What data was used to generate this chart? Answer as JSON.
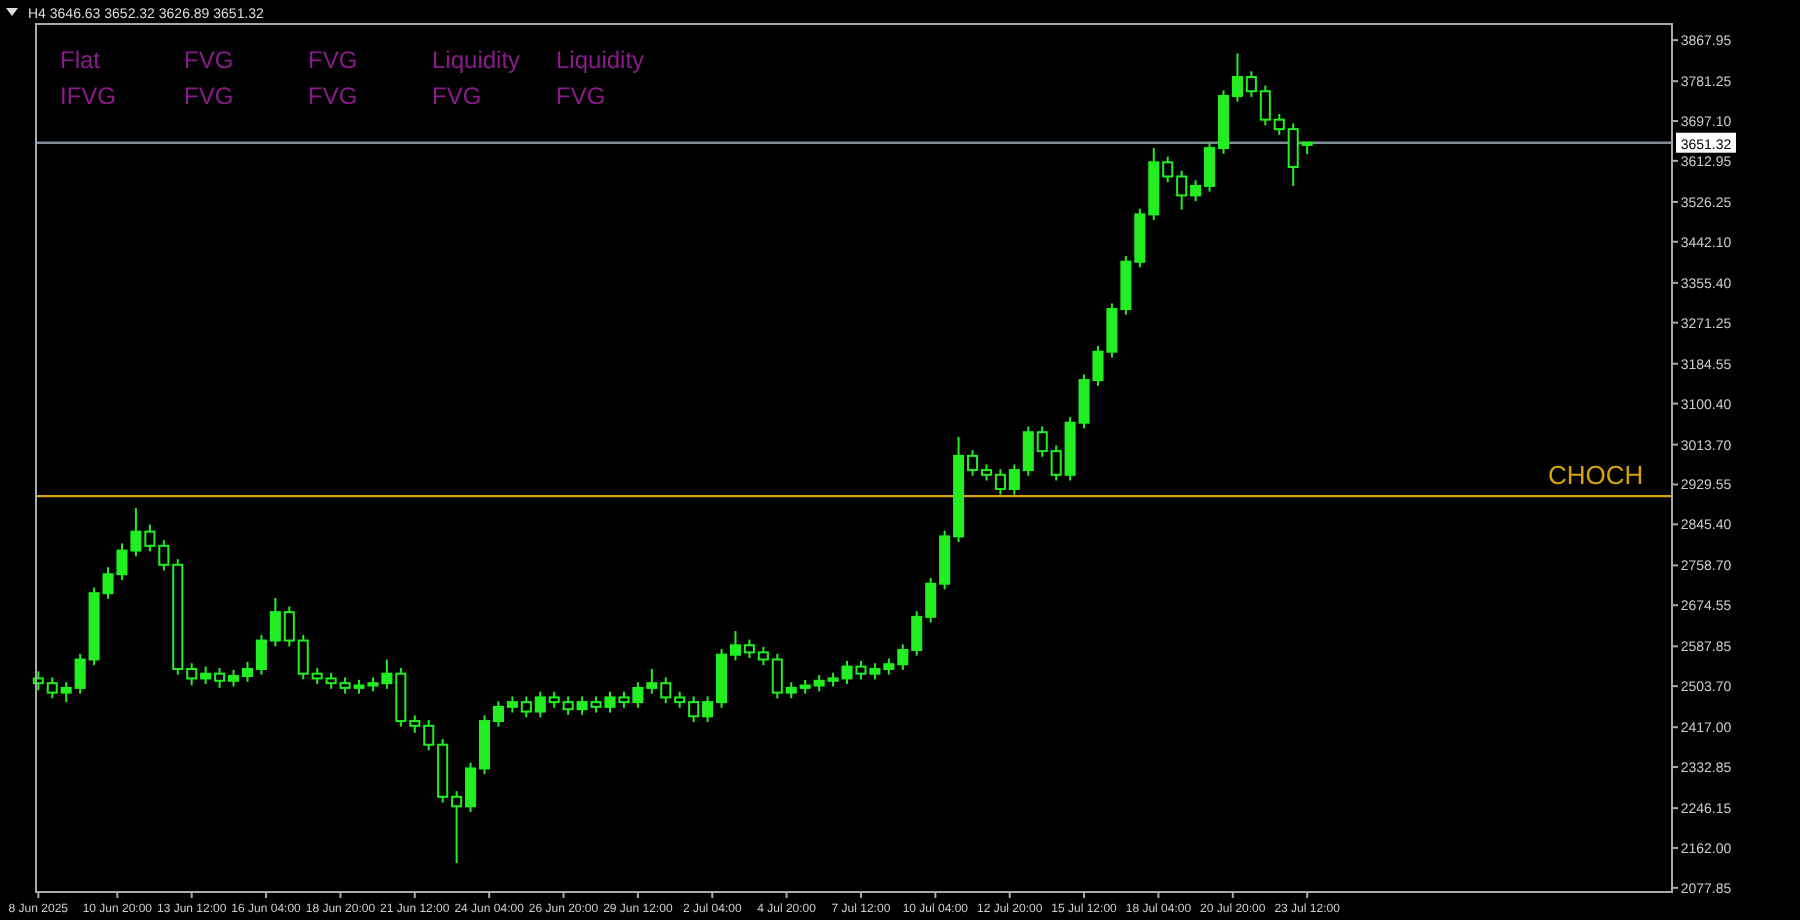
{
  "chart_data": {
    "type": "candlestick",
    "title": "H4  3646.63 3652.32 3626.89 3651.32",
    "color": "#22ee22",
    "x": [
      "2025-06-08T00:00",
      "2025-06-08T12:00",
      "2025-06-09T00:00",
      "2025-06-09T12:00",
      "2025-06-10T00:00",
      "2025-06-10T12:00",
      "2025-06-11T00:00",
      "2025-06-11T12:00",
      "2025-06-12T00:00",
      "2025-06-12T12:00",
      "2025-06-13T00:00",
      "2025-06-13T12:00",
      "2025-06-14T00:00",
      "2025-06-14T12:00",
      "2025-06-15T00:00",
      "2025-06-15T12:00",
      "2025-06-16T00:00",
      "2025-06-16T12:00",
      "2025-06-17T00:00",
      "2025-06-17T12:00",
      "2025-06-18T00:00",
      "2025-06-18T12:00",
      "2025-06-19T00:00",
      "2025-06-19T12:00",
      "2025-06-20T00:00",
      "2025-06-20T12:00",
      "2025-06-21T00:00",
      "2025-06-21T12:00",
      "2025-06-22T00:00",
      "2025-06-22T12:00",
      "2025-06-23T00:00",
      "2025-06-23T12:00",
      "2025-06-24T00:00",
      "2025-06-24T12:00",
      "2025-06-25T00:00",
      "2025-06-25T12:00",
      "2025-06-26T00:00",
      "2025-06-26T12:00",
      "2025-06-27T00:00",
      "2025-06-27T12:00",
      "2025-06-28T00:00",
      "2025-06-28T12:00",
      "2025-06-29T00:00",
      "2025-06-29T12:00",
      "2025-06-30T00:00",
      "2025-06-30T12:00",
      "2025-07-01T00:00",
      "2025-07-01T12:00",
      "2025-07-02T00:00",
      "2025-07-02T12:00",
      "2025-07-03T00:00",
      "2025-07-03T12:00",
      "2025-07-04T00:00",
      "2025-07-04T12:00",
      "2025-07-05T00:00",
      "2025-07-05T12:00",
      "2025-07-06T00:00",
      "2025-07-06T12:00",
      "2025-07-07T00:00",
      "2025-07-07T12:00",
      "2025-07-08T00:00",
      "2025-07-08T12:00",
      "2025-07-09T00:00",
      "2025-07-09T12:00",
      "2025-07-10T00:00",
      "2025-07-10T12:00",
      "2025-07-11T00:00",
      "2025-07-11T12:00",
      "2025-07-12T00:00",
      "2025-07-12T12:00",
      "2025-07-13T00:00",
      "2025-07-13T12:00",
      "2025-07-14T00:00",
      "2025-07-14T12:00",
      "2025-07-15T00:00",
      "2025-07-15T12:00",
      "2025-07-16T00:00",
      "2025-07-16T12:00",
      "2025-07-17T00:00",
      "2025-07-17T12:00",
      "2025-07-18T00:00",
      "2025-07-18T12:00",
      "2025-07-19T00:00",
      "2025-07-19T12:00",
      "2025-07-20T00:00",
      "2025-07-20T12:00",
      "2025-07-21T00:00",
      "2025-07-21T12:00",
      "2025-07-22T00:00",
      "2025-07-22T12:00",
      "2025-07-23T00:00",
      "2025-07-23T12:00"
    ],
    "ohlc": [
      [
        2520,
        2535,
        2495,
        2510
      ],
      [
        2510,
        2522,
        2478,
        2490
      ],
      [
        2490,
        2512,
        2470,
        2500
      ],
      [
        2500,
        2572,
        2488,
        2560
      ],
      [
        2560,
        2712,
        2548,
        2700
      ],
      [
        2700,
        2755,
        2688,
        2740
      ],
      [
        2740,
        2805,
        2728,
        2790
      ],
      [
        2790,
        2880,
        2778,
        2830
      ],
      [
        2830,
        2845,
        2788,
        2800
      ],
      [
        2800,
        2812,
        2748,
        2760
      ],
      [
        2760,
        2772,
        2528,
        2540
      ],
      [
        2540,
        2552,
        2505,
        2520
      ],
      [
        2520,
        2545,
        2508,
        2530
      ],
      [
        2530,
        2542,
        2500,
        2515
      ],
      [
        2515,
        2538,
        2503,
        2525
      ],
      [
        2525,
        2555,
        2513,
        2540
      ],
      [
        2540,
        2612,
        2528,
        2600
      ],
      [
        2600,
        2690,
        2588,
        2660
      ],
      [
        2660,
        2672,
        2588,
        2600
      ],
      [
        2600,
        2612,
        2518,
        2530
      ],
      [
        2530,
        2542,
        2508,
        2520
      ],
      [
        2520,
        2532,
        2498,
        2510
      ],
      [
        2510,
        2522,
        2488,
        2500
      ],
      [
        2500,
        2517,
        2488,
        2505
      ],
      [
        2505,
        2522,
        2493,
        2510
      ],
      [
        2510,
        2560,
        2498,
        2530
      ],
      [
        2530,
        2542,
        2418,
        2430
      ],
      [
        2430,
        2442,
        2405,
        2420
      ],
      [
        2420,
        2432,
        2368,
        2380
      ],
      [
        2380,
        2392,
        2258,
        2270
      ],
      [
        2270,
        2282,
        2130,
        2250
      ],
      [
        2250,
        2342,
        2238,
        2330
      ],
      [
        2330,
        2442,
        2318,
        2430
      ],
      [
        2430,
        2472,
        2418,
        2460
      ],
      [
        2460,
        2482,
        2448,
        2470
      ],
      [
        2470,
        2482,
        2438,
        2450
      ],
      [
        2450,
        2492,
        2438,
        2480
      ],
      [
        2480,
        2492,
        2458,
        2470
      ],
      [
        2470,
        2482,
        2443,
        2455
      ],
      [
        2455,
        2482,
        2443,
        2470
      ],
      [
        2470,
        2482,
        2448,
        2460
      ],
      [
        2460,
        2492,
        2448,
        2480
      ],
      [
        2480,
        2492,
        2458,
        2470
      ],
      [
        2470,
        2512,
        2458,
        2500
      ],
      [
        2500,
        2540,
        2488,
        2510
      ],
      [
        2510,
        2522,
        2468,
        2480
      ],
      [
        2480,
        2492,
        2458,
        2470
      ],
      [
        2470,
        2482,
        2428,
        2440
      ],
      [
        2440,
        2482,
        2428,
        2470
      ],
      [
        2470,
        2582,
        2458,
        2570
      ],
      [
        2570,
        2620,
        2558,
        2590
      ],
      [
        2590,
        2602,
        2563,
        2575
      ],
      [
        2575,
        2587,
        2548,
        2560
      ],
      [
        2560,
        2572,
        2478,
        2490
      ],
      [
        2490,
        2512,
        2478,
        2500
      ],
      [
        2500,
        2517,
        2488,
        2505
      ],
      [
        2505,
        2527,
        2493,
        2515
      ],
      [
        2515,
        2532,
        2503,
        2520
      ],
      [
        2520,
        2557,
        2508,
        2545
      ],
      [
        2545,
        2557,
        2518,
        2530
      ],
      [
        2530,
        2552,
        2518,
        2540
      ],
      [
        2540,
        2562,
        2528,
        2550
      ],
      [
        2550,
        2592,
        2538,
        2580
      ],
      [
        2580,
        2662,
        2568,
        2650
      ],
      [
        2650,
        2732,
        2638,
        2720
      ],
      [
        2720,
        2832,
        2708,
        2820
      ],
      [
        2820,
        3030,
        2808,
        2990
      ],
      [
        2990,
        3002,
        2948,
        2960
      ],
      [
        2960,
        2972,
        2938,
        2950
      ],
      [
        2950,
        2962,
        2908,
        2920
      ],
      [
        2920,
        2972,
        2908,
        2960
      ],
      [
        2960,
        3052,
        2948,
        3040
      ],
      [
        3040,
        3052,
        2988,
        3000
      ],
      [
        3000,
        3012,
        2938,
        2950
      ],
      [
        2950,
        3072,
        2938,
        3060
      ],
      [
        3060,
        3162,
        3048,
        3150
      ],
      [
        3150,
        3222,
        3138,
        3210
      ],
      [
        3210,
        3312,
        3198,
        3300
      ],
      [
        3300,
        3412,
        3288,
        3400
      ],
      [
        3400,
        3512,
        3388,
        3500
      ],
      [
        3500,
        3640,
        3488,
        3610
      ],
      [
        3610,
        3622,
        3568,
        3580
      ],
      [
        3580,
        3592,
        3510,
        3540
      ],
      [
        3540,
        3572,
        3528,
        3560
      ],
      [
        3560,
        3652,
        3548,
        3640
      ],
      [
        3640,
        3762,
        3628,
        3750
      ],
      [
        3750,
        3840,
        3738,
        3790
      ],
      [
        3790,
        3802,
        3748,
        3760
      ],
      [
        3760,
        3772,
        3688,
        3700
      ],
      [
        3700,
        3712,
        3668,
        3680
      ],
      [
        3680,
        3692,
        3560,
        3600
      ],
      [
        3646.63,
        3652.32,
        3626.89,
        3651.32
      ]
    ],
    "xlim": [
      "2025-06-07T22:00",
      "2025-08-05T14:00"
    ],
    "xticks": [
      {
        "value": "2025-06-08T00:00",
        "label": "8 Jun 2025"
      },
      {
        "value": "2025-06-10T20:00",
        "label": "10 Jun 20:00"
      },
      {
        "value": "2025-06-13T12:00",
        "label": "13 Jun 12:00"
      },
      {
        "value": "2025-06-16T04:00",
        "label": "16 Jun 04:00"
      },
      {
        "value": "2025-06-18T20:00",
        "label": "18 Jun 20:00"
      },
      {
        "value": "2025-06-21T12:00",
        "label": "21 Jun 12:00"
      },
      {
        "value": "2025-06-24T04:00",
        "label": "24 Jun 04:00"
      },
      {
        "value": "2025-06-26T20:00",
        "label": "26 Jun 20:00"
      },
      {
        "value": "2025-06-29T12:00",
        "label": "29 Jun 12:00"
      },
      {
        "value": "2025-07-02T04:00",
        "label": "2 Jul 04:00"
      },
      {
        "value": "2025-07-04T20:00",
        "label": "4 Jul 20:00"
      },
      {
        "value": "2025-07-07T12:00",
        "label": "7 Jul 12:00"
      },
      {
        "value": "2025-07-10T04:00",
        "label": "10 Jul 04:00"
      },
      {
        "value": "2025-07-12T20:00",
        "label": "12 Jul 20:00"
      },
      {
        "value": "2025-07-15T12:00",
        "label": "15 Jul 12:00"
      },
      {
        "value": "2025-07-18T04:00",
        "label": "18 Jul 04:00"
      },
      {
        "value": "2025-07-20T20:00",
        "label": "20 Jul 20:00"
      },
      {
        "value": "2025-07-23T12:00",
        "label": "23 Jul 12:00"
      }
    ],
    "ylim": [
      2069,
      3902
    ],
    "yticks": [
      {
        "value": 2077.85,
        "label": "2077.85"
      },
      {
        "value": 2162,
        "label": "2162.00"
      },
      {
        "value": 2246.15,
        "label": "2246.15"
      },
      {
        "value": 2332.85,
        "label": "2332.85"
      },
      {
        "value": 2417,
        "label": "2417.00"
      },
      {
        "value": 2503.7,
        "label": "2503.70"
      },
      {
        "value": 2587.85,
        "label": "2587.85"
      },
      {
        "value": 2674.55,
        "label": "2674.55"
      },
      {
        "value": 2758.7,
        "label": "2758.70"
      },
      {
        "value": 2845.4,
        "label": "2845.40"
      },
      {
        "value": 2929.55,
        "label": "2929.55"
      },
      {
        "value": 3013.7,
        "label": "3013.70"
      },
      {
        "value": 3100.4,
        "label": "3100.40"
      },
      {
        "value": 3184.55,
        "label": "3184.55"
      },
      {
        "value": 3271.25,
        "label": "3271.25"
      },
      {
        "value": 3355.4,
        "label": "3355.40"
      },
      {
        "value": 3442.1,
        "label": "3442.10"
      },
      {
        "value": 3526.25,
        "label": "3526.25"
      },
      {
        "value": 3612.95,
        "label": "3612.95"
      },
      {
        "value": 3697.1,
        "label": "3697.10"
      },
      {
        "value": 3781.25,
        "label": "3781.25"
      },
      {
        "value": 3867.95,
        "label": "3867.95"
      }
    ],
    "ref_lines": [
      {
        "axis": "y",
        "value": 3651.32,
        "label": "3651.32",
        "color": "#7f8c99"
      },
      {
        "axis": "y",
        "value": 2905,
        "label": "CHOCH",
        "color": "#d4a20c"
      }
    ],
    "annotations": [
      "Flat",
      "FVG",
      "FVG",
      "Liquidity",
      "Liquidity",
      "IFVG",
      "FVG",
      "FVG",
      "FVG",
      "FVG"
    ],
    "grid": false
  }
}
